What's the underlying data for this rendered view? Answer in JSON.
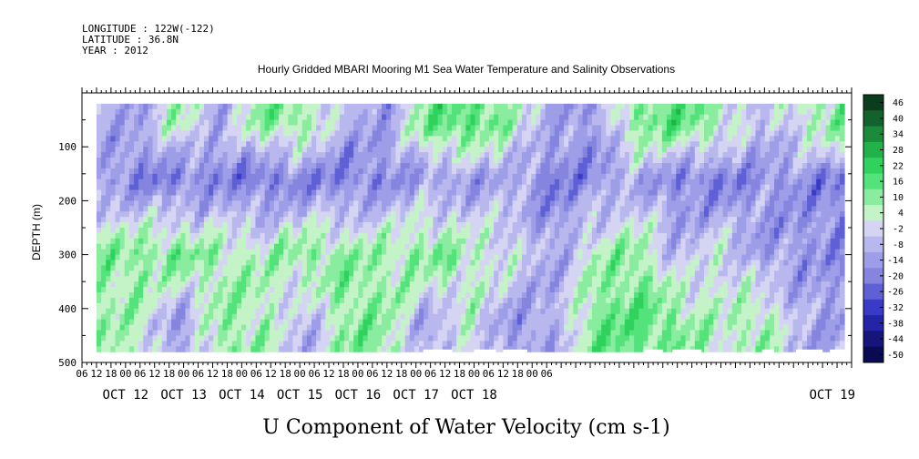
{
  "header": {
    "longitude": "LONGITUDE : 122W(-122)",
    "latitude": "LATITUDE : 36.8N",
    "year": "YEAR : 2012"
  },
  "chart_data": {
    "type": "heatmap",
    "title": "Hourly Gridded MBARI Mooring M1 Sea Water Temperature and Salinity Observations",
    "xlabel": "U Component of Water Velocity (cm s-1)",
    "ylabel": "DEPTH (m)",
    "y_ticks": [
      100,
      200,
      300,
      400,
      500
    ],
    "ylim": [
      500,
      0
    ],
    "data_depth_range": [
      20,
      480
    ],
    "x_hours_range": [
      0,
      318
    ],
    "data_start_hour": 6,
    "hour_ticks": [
      "06",
      "12",
      "18",
      "00",
      "06",
      "12",
      "18",
      "00",
      "06",
      "12",
      "18",
      "00",
      "06",
      "12",
      "18",
      "00",
      "06",
      "12",
      "18",
      "00",
      "06",
      "12",
      "18",
      "00",
      "06",
      "12",
      "18",
      "00",
      "06",
      "12",
      "18",
      "00",
      "06"
    ],
    "day_labels": [
      "OCT 12",
      "OCT 13",
      "OCT 14",
      "OCT 15",
      "OCT 16",
      "OCT 17",
      "OCT 18",
      "OCT 19"
    ],
    "colorbar": {
      "labels": [
        "46",
        "40",
        "34",
        "28",
        "22",
        "16",
        "10",
        "4",
        "-2",
        "-8",
        "-14",
        "-20",
        "-26",
        "-32",
        "-38",
        "-44",
        "-50"
      ],
      "colors": [
        "#0b3d1c",
        "#13612c",
        "#1c8a3b",
        "#22b24a",
        "#2fd25c",
        "#53e37a",
        "#8aec9f",
        "#c4f3c8",
        "#d5d5f3",
        "#b8b8ee",
        "#9e9ee8",
        "#8585e0",
        "#5f5fd6",
        "#3a3ac8",
        "#2424a8",
        "#15157c",
        "#0a0a52"
      ]
    },
    "cells_shown": "interpolated field; positive (eastward) velocities green, negative (westward) blue",
    "depth_bands": [
      {
        "depth": 60,
        "values": [
          -6,
          -10,
          10,
          -8,
          14,
          12,
          -6,
          -10,
          16,
          20,
          8,
          -8,
          -12,
          14,
          18,
          10,
          -6,
          6,
          16
        ]
      },
      {
        "depth": 160,
        "values": [
          -10,
          -16,
          -18,
          -16,
          -20,
          -16,
          -18,
          -14,
          -10,
          -12,
          -8,
          -18,
          -14,
          -8,
          -16,
          -18,
          -12,
          -14,
          -18
        ]
      },
      {
        "depth": 300,
        "values": [
          12,
          14,
          16,
          10,
          8,
          14,
          12,
          10,
          16,
          8,
          4,
          -10,
          8,
          14,
          -6,
          4,
          -10,
          -12,
          -14
        ]
      },
      {
        "depth": 420,
        "values": [
          10,
          8,
          -12,
          12,
          10,
          -8,
          14,
          12,
          -10,
          6,
          -12,
          -8,
          16,
          18,
          14,
          6,
          12,
          -8,
          -10
        ]
      }
    ]
  }
}
